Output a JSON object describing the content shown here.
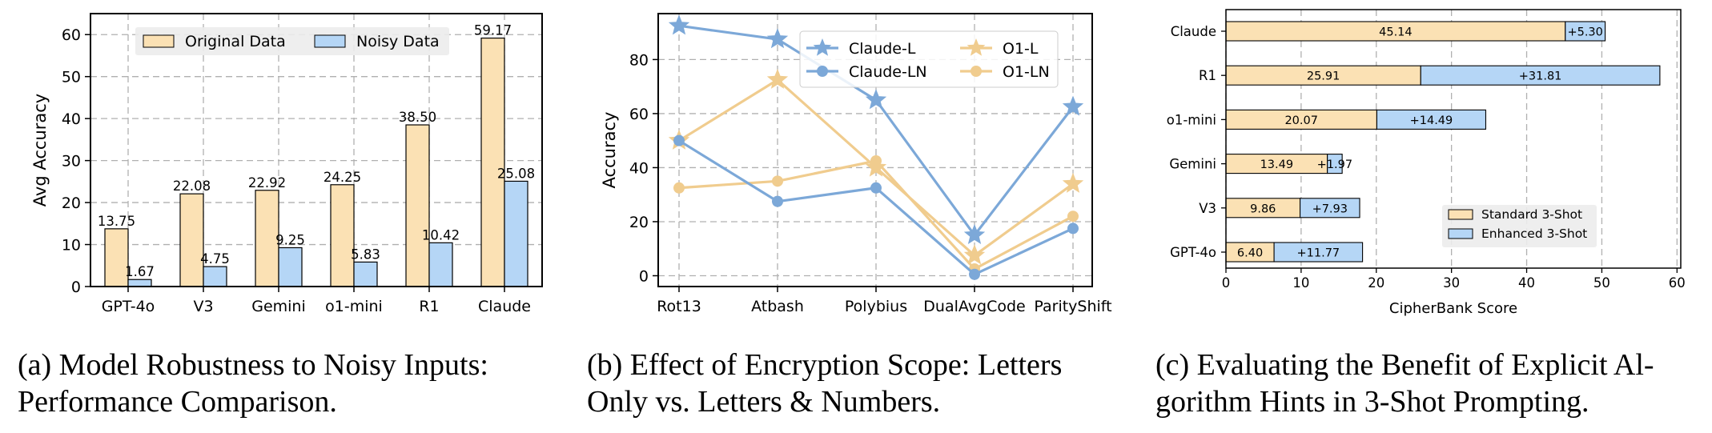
{
  "chart_data": [
    {
      "type": "bar",
      "categories": [
        "GPT-4o",
        "V3",
        "Gemini",
        "o1-mini",
        "R1",
        "Claude"
      ],
      "series": [
        {
          "name": "Original Data",
          "values": [
            13.75,
            22.08,
            22.92,
            24.25,
            38.5,
            59.17
          ],
          "labels": [
            "13.75",
            "22.08",
            "22.92",
            "24.25",
            "38.50",
            "59.17"
          ],
          "color": "#fbe1b4"
        },
        {
          "name": "Noisy Data",
          "values": [
            1.67,
            4.75,
            9.25,
            5.83,
            10.42,
            25.08
          ],
          "labels": [
            "1.67",
            "4.75",
            "9.25",
            "5.83",
            "10.42",
            "25.08"
          ],
          "color": "#b5d6f6"
        }
      ],
      "ylabel": "Avg Accuracy",
      "ylim": [
        0,
        65
      ],
      "yticks": [
        0,
        10,
        20,
        30,
        40,
        50,
        60
      ],
      "legend_position": "top",
      "caption": [
        "(a) Model Robustness to Noisy Inputs:",
        "Performance Comparison."
      ]
    },
    {
      "type": "line",
      "categories": [
        "Rot13",
        "Atbash",
        "Polybius",
        "DualAvgCode",
        "ParityShift"
      ],
      "series": [
        {
          "name": "Claude-L",
          "values": [
            92.5,
            87.5,
            65.0,
            15.0,
            62.5
          ],
          "color": "#7ca8d8",
          "marker": "star"
        },
        {
          "name": "Claude-LN",
          "values": [
            50.0,
            27.5,
            32.5,
            0.5,
            17.5
          ],
          "color": "#7ca8d8",
          "marker": "circle"
        },
        {
          "name": "O1-L",
          "values": [
            50.0,
            72.5,
            40.0,
            7.5,
            34.0
          ],
          "color": "#f0cc8e",
          "marker": "star"
        },
        {
          "name": "O1-LN",
          "values": [
            32.5,
            35.0,
            42.5,
            2.5,
            22.0
          ],
          "color": "#f0cc8e",
          "marker": "circle"
        }
      ],
      "ylabel": "Accuracy",
      "ylim": [
        -4,
        97
      ],
      "yticks": [
        0,
        20,
        40,
        60,
        80
      ],
      "legend_position": "top-right",
      "caption": [
        "(b) Effect of Encryption Scope: Letters",
        "Only vs. Letters & Numbers."
      ]
    },
    {
      "type": "stacked-barh",
      "categories": [
        "GPT-4o",
        "V3",
        "Gemini",
        "o1-mini",
        "R1",
        "Claude"
      ],
      "series": [
        {
          "name": "Standard 3-Shot",
          "values": [
            6.4,
            9.86,
            13.49,
            20.07,
            25.91,
            45.14
          ],
          "labels": [
            "6.40",
            "9.86",
            "13.49",
            "20.07",
            "25.91",
            "45.14"
          ],
          "color": "#fbe1b4"
        },
        {
          "name": "Enhanced 3-Shot",
          "values": [
            11.77,
            7.93,
            1.97,
            14.49,
            31.81,
            5.3
          ],
          "labels": [
            "+11.77",
            "+7.93",
            "+1.97",
            "+14.49",
            "+31.81",
            "+5.30"
          ],
          "color": "#b5d6f6"
        }
      ],
      "xlabel": "CipherBank Score",
      "xlim": [
        0,
        60.5
      ],
      "xticks": [
        0,
        10,
        20,
        30,
        40,
        50,
        60
      ],
      "legend_position": "lower-right",
      "caption": [
        "(c) Evaluating the Benefit of Explicit Al-",
        "gorithm Hints in 3-Shot Prompting."
      ]
    }
  ]
}
